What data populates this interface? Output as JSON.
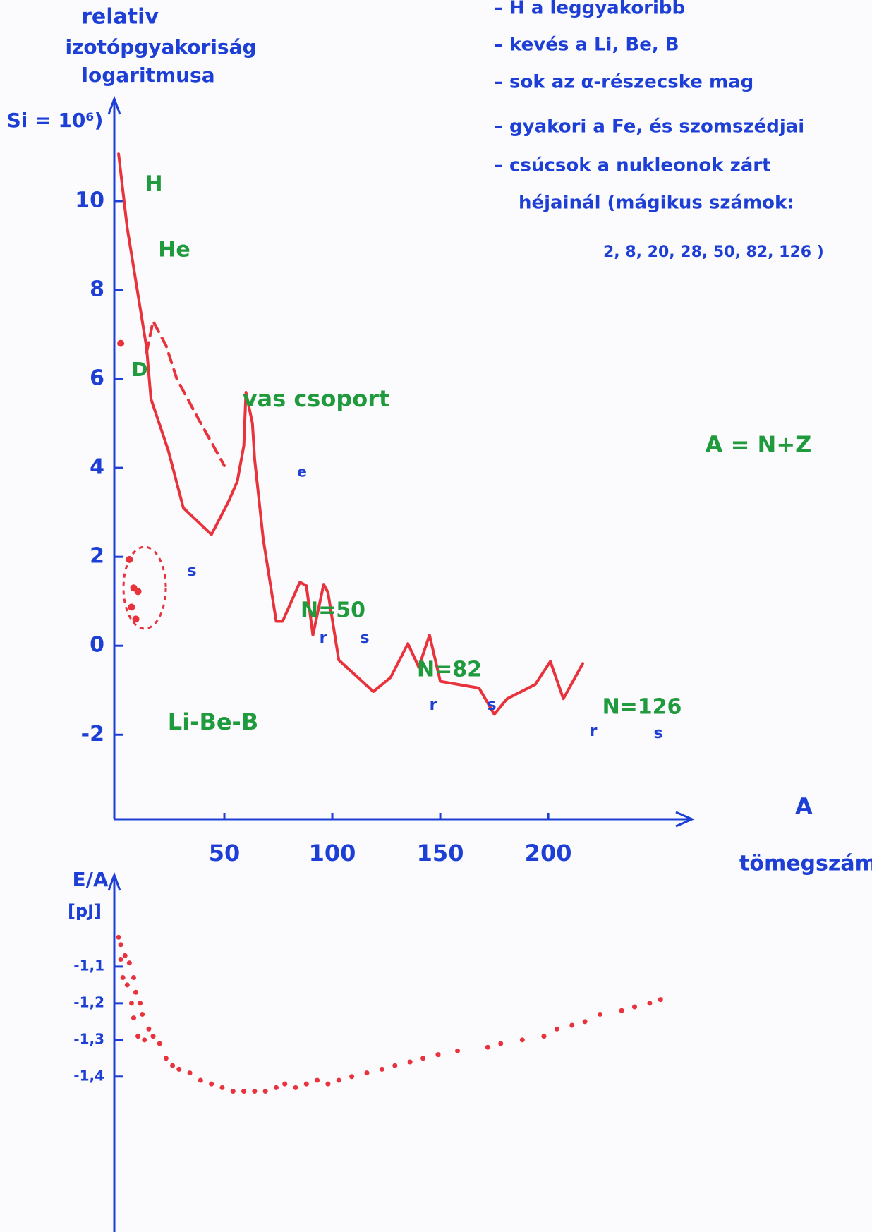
{
  "chart_data": [
    {
      "type": "line",
      "y_label": [
        "relativ",
        "izotópgyakoriság",
        "logaritmusa",
        "Si = 10⁶)"
      ],
      "x_label": [
        "A",
        "tömegszám"
      ],
      "xlim": [
        0,
        265
      ],
      "xticks": [
        50,
        100,
        150,
        200
      ],
      "ylim": [
        -3.9,
        12.3
      ],
      "yticks": [
        -2,
        0,
        2,
        4,
        6,
        8,
        10
      ],
      "axis_color": "#1d3fd6",
      "series": [
        {
          "color": "#e8333c",
          "style": "solid",
          "x": [
            1,
            5,
            14,
            16,
            24,
            31,
            44,
            52,
            56,
            59,
            60,
            63,
            64,
            68,
            74,
            77,
            85,
            88,
            91,
            96,
            98,
            103,
            119,
            127,
            135,
            140,
            145,
            150,
            168,
            175,
            181,
            194,
            201,
            207,
            216
          ],
          "values": [
            11.06,
            9.4,
            6.7,
            5.55,
            4.4,
            3.1,
            2.5,
            3.25,
            3.7,
            4.5,
            5.7,
            5.0,
            4.2,
            2.4,
            0.55,
            0.55,
            1.43,
            1.35,
            0.24,
            1.38,
            1.2,
            -0.32,
            -1.03,
            -0.71,
            0.05,
            -0.48,
            0.24,
            -0.8,
            -0.95,
            -1.54,
            -1.19,
            -0.87,
            -0.35,
            -1.19,
            -0.4
          ]
        },
        {
          "color": "#e8333c",
          "style": "dashed",
          "x": [
            14,
            17,
            23,
            28,
            38,
            50
          ],
          "values": [
            6.6,
            7.3,
            6.75,
            6.0,
            5.1,
            4.05
          ]
        },
        {
          "color": "#e8333c",
          "style": "markers",
          "x": [
            2,
            6,
            7,
            8,
            9,
            10
          ],
          "values": [
            6.8,
            1.94,
            0.87,
            1.3,
            0.6,
            1.22
          ]
        }
      ],
      "annotations": [
        {
          "text": "H",
          "color": "#1f9a3c"
        },
        {
          "text": "He",
          "color": "#1f9a3c"
        },
        {
          "text": "D",
          "color": "#1f9a3c"
        },
        {
          "text": "vas csoport",
          "color": "#1f9a3c"
        },
        {
          "text": "e",
          "color": "#1d3fd6"
        },
        {
          "text": "s",
          "color": "#1d3fd6"
        },
        {
          "text": "Li-Be-B",
          "color": "#1f9a3c"
        },
        {
          "text": "N=50",
          "color": "#1f9a3c"
        },
        {
          "text": "r",
          "color": "#1d3fd6"
        },
        {
          "text": "s",
          "color": "#1d3fd6"
        },
        {
          "text": "N=82",
          "color": "#1f9a3c"
        },
        {
          "text": "r",
          "color": "#1d3fd6"
        },
        {
          "text": "s",
          "color": "#1d3fd6"
        },
        {
          "text": "N=126",
          "color": "#1f9a3c"
        },
        {
          "text": "r",
          "color": "#1d3fd6"
        },
        {
          "text": "s",
          "color": "#1d3fd6"
        },
        {
          "text": "A = N+Z",
          "color": "#1f9a3c"
        }
      ],
      "notes": [
        "– H a leggyakoribb",
        "– kevés a Li, Be, B",
        "– sok az α-részecske mag",
        "– gyakori a Fe, és szomszédjai",
        "– csúcsok a nukleonok zárt",
        "héjainál (mágikus számok:",
        "2, 8, 20, 28, 50, 82, 126 )"
      ]
    },
    {
      "type": "scatter",
      "y_label": [
        "E/A",
        "[pJ]"
      ],
      "xlim": [
        0,
        265
      ],
      "ylim": [
        -1.82,
        -0.85
      ],
      "yticks": [
        {
          "value": -1.1,
          "label": "-1,1"
        },
        {
          "value": -1.2,
          "label": "-1,2"
        },
        {
          "value": -1.3,
          "label": "-1,3"
        },
        {
          "value": -1.4,
          "label": "-1,4"
        }
      ],
      "axis_color": "#1d3fd6",
      "color": "#e8333c",
      "x": [
        1,
        2,
        4,
        6,
        8,
        9,
        11,
        12,
        15,
        17,
        20,
        2,
        3,
        5,
        7,
        8,
        10,
        13,
        23,
        26,
        29,
        34,
        39,
        44,
        49,
        54,
        59,
        64,
        69,
        74,
        78,
        83,
        88,
        93,
        98,
        103,
        109,
        116,
        123,
        129,
        136,
        142,
        149,
        158,
        172,
        178,
        188,
        198,
        204,
        211,
        217,
        224,
        234,
        240,
        247,
        252
      ],
      "values": [
        -1.02,
        -1.04,
        -1.07,
        -1.09,
        -1.13,
        -1.17,
        -1.2,
        -1.23,
        -1.27,
        -1.29,
        -1.31,
        -1.08,
        -1.13,
        -1.15,
        -1.2,
        -1.24,
        -1.29,
        -1.3,
        -1.35,
        -1.37,
        -1.38,
        -1.39,
        -1.41,
        -1.42,
        -1.43,
        -1.44,
        -1.44,
        -1.44,
        -1.44,
        -1.43,
        -1.42,
        -1.43,
        -1.42,
        -1.41,
        -1.42,
        -1.41,
        -1.4,
        -1.39,
        -1.38,
        -1.37,
        -1.36,
        -1.35,
        -1.34,
        -1.33,
        -1.32,
        -1.31,
        -1.3,
        -1.29,
        -1.27,
        -1.26,
        -1.25,
        -1.23,
        -1.22,
        -1.21,
        -1.2,
        -1.19
      ]
    }
  ]
}
